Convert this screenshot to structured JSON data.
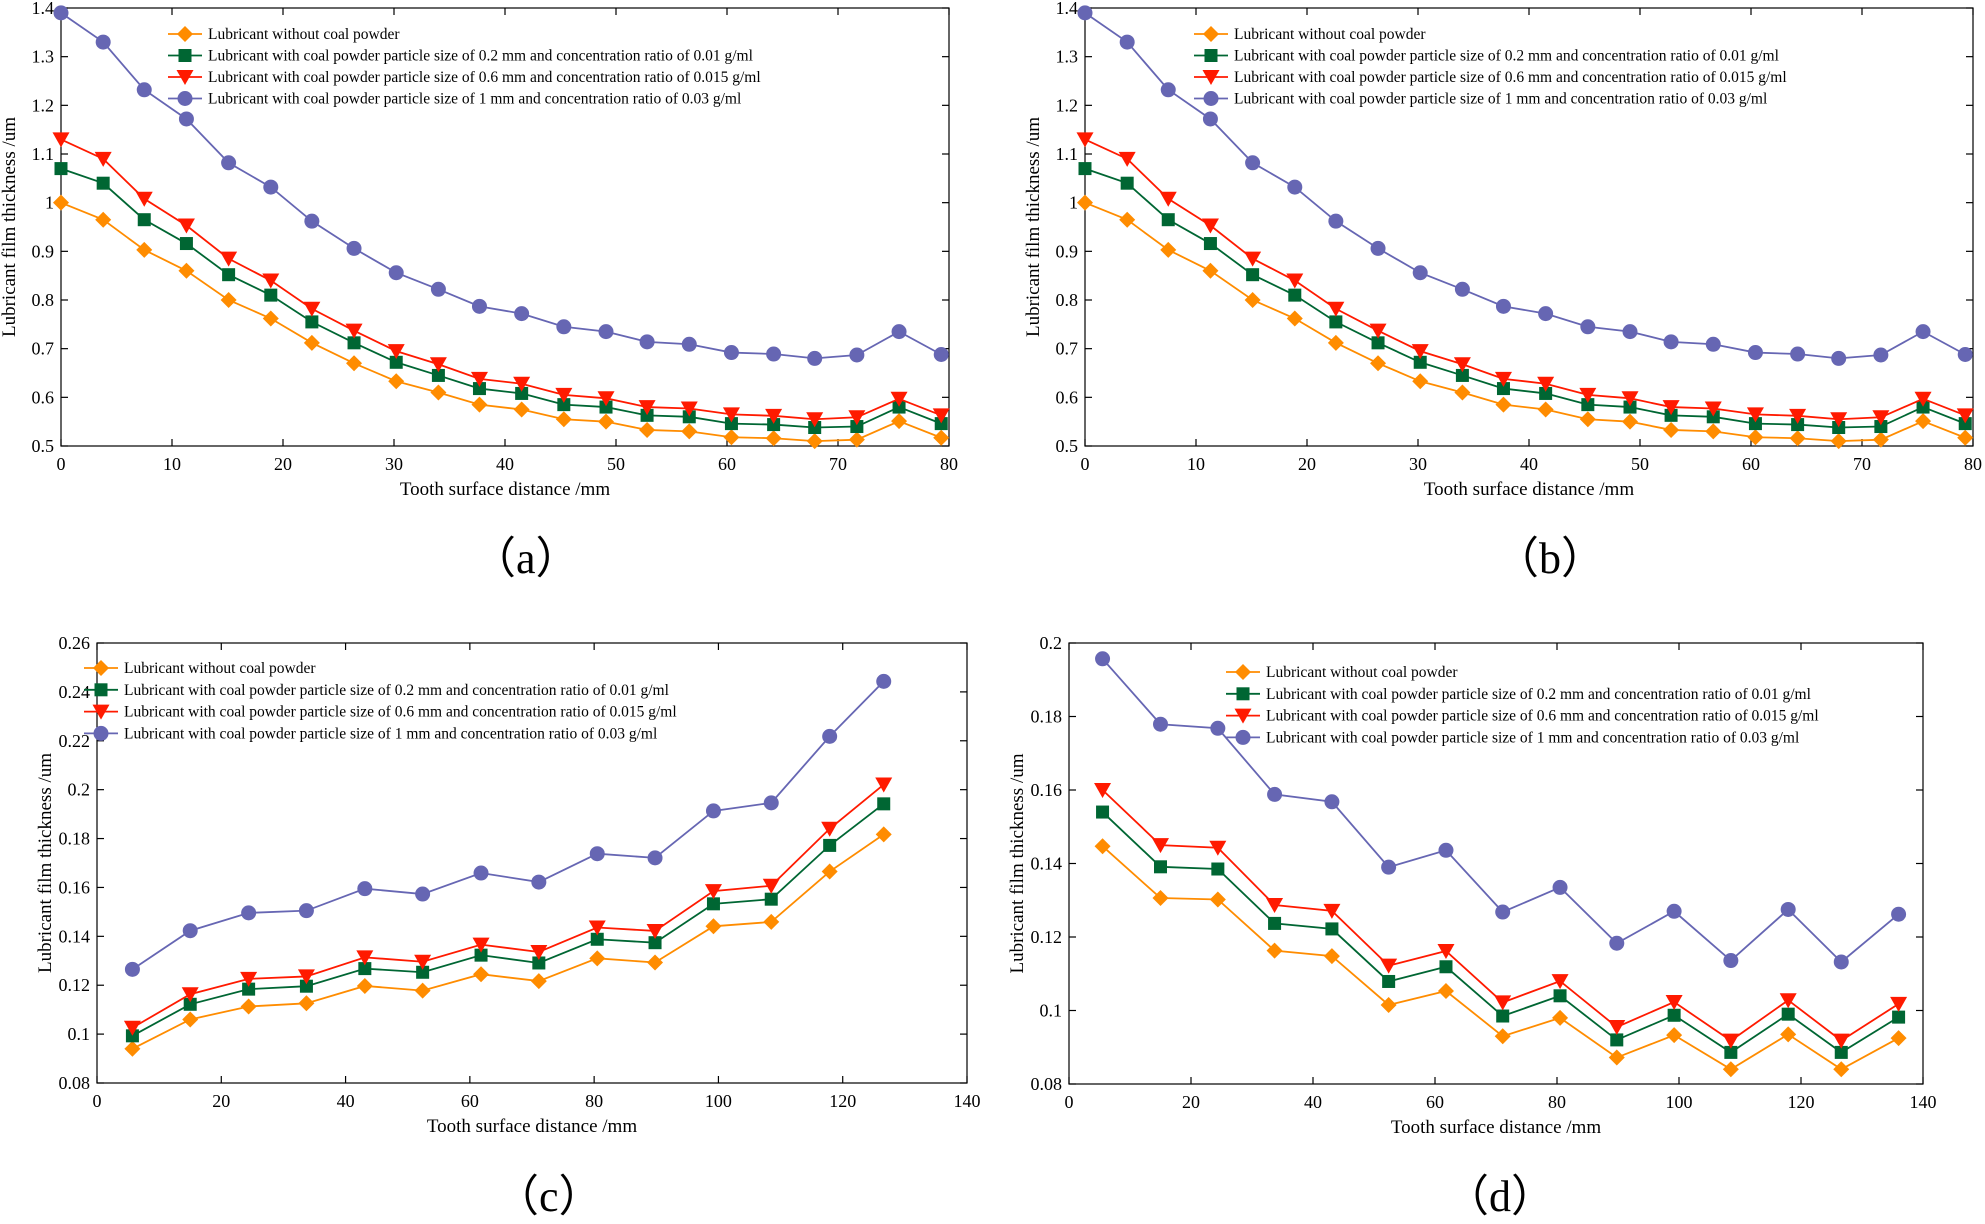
{
  "legend_labels": [
    "Lubricant without coal powder",
    "Lubricant with coal powder particle size of 0.2 mm and concentration ratio of 0.01 g/ml",
    "Lubricant with coal powder particle size of 0.6 mm and concentration ratio of 0.015 g/ml",
    "Lubricant with coal powder particle size of 1 mm and concentration ratio of 0.03 g/ml"
  ],
  "series_styles": [
    {
      "color": "#ff8c00",
      "marker": "diamond"
    },
    {
      "color": "#006633",
      "marker": "square"
    },
    {
      "color": "#ff1a00",
      "marker": "triangle-down"
    },
    {
      "color": "#6666b3",
      "marker": "circle"
    }
  ],
  "chart_data": [
    {
      "type": "line",
      "panel": "a",
      "caption": "（a）",
      "title": "",
      "xlabel": "Tooth surface distance /mm",
      "ylabel": "Lubricant film thickness /um",
      "xlim": [
        0,
        80
      ],
      "ylim": [
        0.5,
        1.4
      ],
      "xticks": [
        0,
        10,
        20,
        30,
        40,
        50,
        60,
        70,
        80
      ],
      "xtick_labels": [
        "0",
        "10",
        "20",
        "30",
        "40",
        "50",
        "60",
        "70",
        "80"
      ],
      "yticks": [
        0.5,
        0.6,
        0.7,
        0.8,
        0.9,
        1.0,
        1.1,
        1.2,
        1.3,
        1.4
      ],
      "ytick_labels": [
        "0.5",
        "0.6",
        "0.7",
        "0.8",
        "0.9",
        "1",
        "1.1",
        "1.2",
        "1.3",
        "1.4"
      ],
      "legend_position": "top-center",
      "x": [
        0,
        3.8,
        7.5,
        11.3,
        15.1,
        18.9,
        22.6,
        26.4,
        30.2,
        34.0,
        37.7,
        41.5,
        45.3,
        49.1,
        52.8,
        56.6,
        60.4,
        64.2,
        67.9,
        71.7,
        75.5,
        79.3
      ],
      "series": [
        {
          "name": "Lubricant without coal powder",
          "values": [
            1.0,
            0.965,
            0.903,
            0.86,
            0.8,
            0.762,
            0.712,
            0.67,
            0.633,
            0.61,
            0.585,
            0.575,
            0.555,
            0.55,
            0.533,
            0.53,
            0.518,
            0.516,
            0.51,
            0.513,
            0.551,
            0.517
          ]
        },
        {
          "name": "Lubricant with coal powder particle size of 0.2 mm and concentration ratio of 0.01 g/ml",
          "values": [
            1.07,
            1.04,
            0.965,
            0.916,
            0.852,
            0.81,
            0.755,
            0.712,
            0.672,
            0.645,
            0.618,
            0.608,
            0.585,
            0.58,
            0.563,
            0.56,
            0.546,
            0.544,
            0.538,
            0.54,
            0.58,
            0.546
          ]
        },
        {
          "name": "Lubricant with coal powder particle size of 0.6 mm and concentration ratio of 0.015 g/ml",
          "values": [
            1.13,
            1.09,
            1.008,
            0.953,
            0.885,
            0.84,
            0.782,
            0.737,
            0.695,
            0.668,
            0.638,
            0.628,
            0.605,
            0.598,
            0.58,
            0.577,
            0.565,
            0.562,
            0.555,
            0.559,
            0.597,
            0.563
          ]
        },
        {
          "name": "Lubricant with coal powder particle size of 1 mm and concentration ratio of 0.03 g/ml",
          "values": [
            1.39,
            1.33,
            1.232,
            1.172,
            1.082,
            1.032,
            0.962,
            0.906,
            0.856,
            0.822,
            0.787,
            0.772,
            0.745,
            0.735,
            0.714,
            0.709,
            0.692,
            0.689,
            0.68,
            0.687,
            0.735,
            0.688
          ]
        }
      ]
    },
    {
      "type": "line",
      "panel": "b",
      "caption": "（b）",
      "title": "",
      "xlabel": "Tooth surface distance /mm",
      "ylabel": "Lubricant film thickness /um",
      "xlim": [
        0,
        80
      ],
      "ylim": [
        0.5,
        1.4
      ],
      "xticks": [
        0,
        10,
        20,
        30,
        40,
        50,
        60,
        70,
        80
      ],
      "xtick_labels": [
        "0",
        "10",
        "20",
        "30",
        "40",
        "50",
        "60",
        "70",
        "80"
      ],
      "yticks": [
        0.5,
        0.6,
        0.7,
        0.8,
        0.9,
        1.0,
        1.1,
        1.2,
        1.3,
        1.4
      ],
      "ytick_labels": [
        "0.5",
        "0.6",
        "0.7",
        "0.8",
        "0.9",
        "1",
        "1.1",
        "1.2",
        "1.3",
        "1.4"
      ],
      "legend_position": "top-center",
      "x": [
        0,
        3.8,
        7.5,
        11.3,
        15.1,
        18.9,
        22.6,
        26.4,
        30.2,
        34.0,
        37.7,
        41.5,
        45.3,
        49.1,
        52.8,
        56.6,
        60.4,
        64.2,
        67.9,
        71.7,
        75.5,
        79.3
      ],
      "series": [
        {
          "name": "Lubricant without coal powder",
          "values": [
            1.0,
            0.965,
            0.903,
            0.86,
            0.8,
            0.762,
            0.712,
            0.67,
            0.633,
            0.61,
            0.585,
            0.575,
            0.555,
            0.55,
            0.533,
            0.53,
            0.518,
            0.516,
            0.51,
            0.513,
            0.551,
            0.517
          ]
        },
        {
          "name": "Lubricant with coal powder particle size of 0.2 mm and concentration ratio of 0.01 g/ml",
          "values": [
            1.07,
            1.04,
            0.965,
            0.916,
            0.852,
            0.81,
            0.755,
            0.712,
            0.672,
            0.645,
            0.618,
            0.608,
            0.585,
            0.58,
            0.563,
            0.56,
            0.546,
            0.544,
            0.538,
            0.54,
            0.58,
            0.546
          ]
        },
        {
          "name": "Lubricant with coal powder particle size of 0.6 mm and concentration ratio of 0.015 g/ml",
          "values": [
            1.13,
            1.09,
            1.008,
            0.953,
            0.885,
            0.84,
            0.782,
            0.737,
            0.695,
            0.668,
            0.638,
            0.628,
            0.605,
            0.598,
            0.58,
            0.577,
            0.565,
            0.562,
            0.555,
            0.559,
            0.597,
            0.563
          ]
        },
        {
          "name": "Lubricant with coal powder particle size of 1 mm and concentration ratio of 0.03 g/ml",
          "values": [
            1.39,
            1.33,
            1.232,
            1.172,
            1.082,
            1.032,
            0.962,
            0.906,
            0.856,
            0.822,
            0.787,
            0.772,
            0.745,
            0.735,
            0.714,
            0.709,
            0.692,
            0.689,
            0.68,
            0.687,
            0.735,
            0.688
          ]
        }
      ]
    },
    {
      "type": "line",
      "panel": "c",
      "caption": "（c）",
      "title": "",
      "xlabel": "Tooth surface distance /mm",
      "ylabel": "Lubricant film thickness /um",
      "xlim": [
        0,
        140
      ],
      "ylim": [
        0.08,
        0.26
      ],
      "xticks": [
        0,
        20,
        40,
        60,
        80,
        100,
        120,
        140
      ],
      "xtick_labels": [
        "0",
        "20",
        "40",
        "60",
        "80",
        "100",
        "120",
        "140"
      ],
      "yticks": [
        0.08,
        0.1,
        0.12,
        0.14,
        0.16,
        0.18,
        0.2,
        0.22,
        0.24,
        0.26
      ],
      "ytick_labels": [
        "0.08",
        "0.1",
        "0.12",
        "0.14",
        "0.16",
        "0.18",
        "0.2",
        "0.22",
        "0.24",
        "0.26"
      ],
      "legend_position": "top-left",
      "x": [
        5.7,
        15.0,
        24.4,
        33.7,
        43.1,
        52.4,
        61.8,
        71.1,
        80.5,
        89.8,
        99.2,
        108.5,
        117.9,
        126.6
      ],
      "series": [
        {
          "name": "Lubricant without coal powder",
          "values": [
            0.094,
            0.106,
            0.1113,
            0.1126,
            0.1197,
            0.1178,
            0.1245,
            0.1217,
            0.131,
            0.1293,
            0.1441,
            0.1459,
            0.1665,
            0.1817
          ]
        },
        {
          "name": "Lubricant with coal powder particle size of 0.2 mm and concentration ratio of 0.01 g/ml",
          "values": [
            0.0993,
            0.1122,
            0.1184,
            0.1196,
            0.1268,
            0.1253,
            0.1323,
            0.1291,
            0.1388,
            0.1374,
            0.1533,
            0.1552,
            0.1772,
            0.1942
          ]
        },
        {
          "name": "Lubricant with coal powder particle size of 0.6 mm and concentration ratio of 0.015 g/ml",
          "values": [
            0.1026,
            0.1163,
            0.1226,
            0.1236,
            0.1314,
            0.1296,
            0.1366,
            0.1336,
            0.1436,
            0.1422,
            0.1585,
            0.1607,
            0.184,
            0.2021
          ]
        },
        {
          "name": "Lubricant with coal powder particle size of 1 mm and concentration ratio of 0.03 g/ml",
          "values": [
            0.1265,
            0.1423,
            0.1496,
            0.1505,
            0.1595,
            0.1573,
            0.1659,
            0.1622,
            0.1738,
            0.1721,
            0.1913,
            0.1946,
            0.2218,
            0.2443
          ]
        }
      ]
    },
    {
      "type": "line",
      "panel": "d",
      "caption": "（d）",
      "title": "",
      "xlabel": "Tooth surface distance /mm",
      "ylabel": "Lubricant film thickness /um",
      "xlim": [
        0,
        140
      ],
      "ylim": [
        0.08,
        0.2
      ],
      "xticks": [
        0,
        20,
        40,
        60,
        80,
        100,
        120,
        140
      ],
      "xtick_labels": [
        "0",
        "20",
        "40",
        "60",
        "80",
        "100",
        "120",
        "140"
      ],
      "yticks": [
        0.08,
        0.1,
        0.12,
        0.14,
        0.16,
        0.18,
        0.2
      ],
      "ytick_labels": [
        "0.08",
        "0.1",
        "0.12",
        "0.14",
        "0.16",
        "0.18",
        "0.2"
      ],
      "legend_position": "top-right",
      "x": [
        5.5,
        15.0,
        24.4,
        33.7,
        43.1,
        52.4,
        61.8,
        71.1,
        80.5,
        89.8,
        99.2,
        108.5,
        117.9,
        126.6,
        136.0
      ],
      "series": [
        {
          "name": "Lubricant without coal powder",
          "values": [
            0.1447,
            0.1306,
            0.1302,
            0.1163,
            0.1148,
            0.1015,
            0.1053,
            0.093,
            0.098,
            0.0872,
            0.0933,
            0.084,
            0.0935,
            0.084,
            0.0925
          ]
        },
        {
          "name": "Lubricant with coal powder particle size of 0.2 mm and concentration ratio of 0.01 g/ml",
          "values": [
            0.154,
            0.1391,
            0.1385,
            0.1237,
            0.1222,
            0.1079,
            0.1119,
            0.0985,
            0.104,
            0.092,
            0.0987,
            0.0886,
            0.099,
            0.0886,
            0.0982
          ]
        },
        {
          "name": "Lubricant with coal powder particle size of 0.6 mm and concentration ratio of 0.015 g/ml",
          "values": [
            0.16,
            0.145,
            0.1443,
            0.1287,
            0.1271,
            0.1122,
            0.1162,
            0.1022,
            0.108,
            0.0955,
            0.1023,
            0.0918,
            0.1028,
            0.0918,
            0.1018
          ]
        },
        {
          "name": "Lubricant with coal powder particle size of 1 mm and concentration ratio of 0.03 g/ml",
          "values": [
            0.1957,
            0.1779,
            0.1768,
            0.1588,
            0.1568,
            0.139,
            0.1436,
            0.1268,
            0.1335,
            0.1183,
            0.127,
            0.1136,
            0.1275,
            0.1132,
            0.1262
          ]
        }
      ]
    }
  ]
}
